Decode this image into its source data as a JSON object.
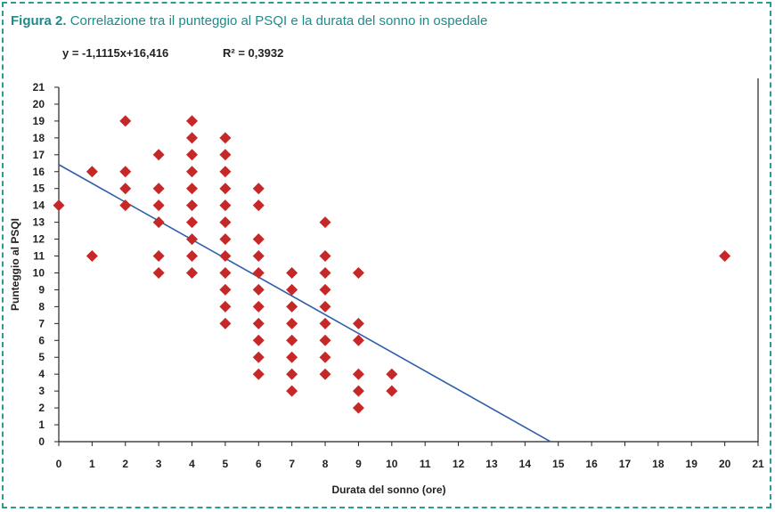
{
  "figure": {
    "label": "Figura 2.",
    "caption": "Correlazione tra il punteggio al PSQI e la durata del sonno in ospedale",
    "equation": "y = -1,1115x+16,416",
    "r_squared": "R² = 0,3932"
  },
  "colors": {
    "frame": "#2a9d8f",
    "title": "#1f8a8a",
    "points": "#c62828",
    "trendline": "#2f5faa",
    "axis": "#222222"
  },
  "chart_data": {
    "type": "scatter",
    "xlabel": "Durata del sonno (ore)",
    "ylabel": "Punteggio al PSQI",
    "xlim": [
      0,
      21
    ],
    "ylim": [
      0,
      21
    ],
    "x_ticks": [
      0,
      1,
      2,
      3,
      4,
      5,
      6,
      7,
      8,
      9,
      10,
      11,
      12,
      13,
      14,
      15,
      16,
      17,
      18,
      19,
      20,
      21
    ],
    "y_ticks": [
      0,
      1,
      2,
      3,
      4,
      5,
      6,
      7,
      8,
      9,
      10,
      11,
      12,
      13,
      14,
      15,
      16,
      17,
      18,
      19,
      20,
      21
    ],
    "grid": false,
    "trendline": {
      "slope": -1.1115,
      "intercept": 16.416,
      "x_range": [
        0,
        14.77
      ]
    },
    "points": [
      [
        0,
        14
      ],
      [
        1,
        16
      ],
      [
        1,
        11
      ],
      [
        2,
        19
      ],
      [
        2,
        16
      ],
      [
        2,
        15
      ],
      [
        2,
        14
      ],
      [
        3,
        17
      ],
      [
        3,
        15
      ],
      [
        3,
        14
      ],
      [
        3,
        13
      ],
      [
        3,
        11
      ],
      [
        3,
        10
      ],
      [
        4,
        19
      ],
      [
        4,
        18
      ],
      [
        4,
        17
      ],
      [
        4,
        16
      ],
      [
        4,
        15
      ],
      [
        4,
        14
      ],
      [
        4,
        13
      ],
      [
        4,
        12
      ],
      [
        4,
        11
      ],
      [
        4,
        10
      ],
      [
        5,
        18
      ],
      [
        5,
        17
      ],
      [
        5,
        16
      ],
      [
        5,
        15
      ],
      [
        5,
        14
      ],
      [
        5,
        13
      ],
      [
        5,
        12
      ],
      [
        5,
        11
      ],
      [
        5,
        10
      ],
      [
        5,
        9
      ],
      [
        5,
        8
      ],
      [
        5,
        7
      ],
      [
        6,
        15
      ],
      [
        6,
        14
      ],
      [
        6,
        12
      ],
      [
        6,
        11
      ],
      [
        6,
        10
      ],
      [
        6,
        9
      ],
      [
        6,
        8
      ],
      [
        6,
        7
      ],
      [
        6,
        6
      ],
      [
        6,
        5
      ],
      [
        6,
        4
      ],
      [
        7,
        10
      ],
      [
        7,
        9
      ],
      [
        7,
        8
      ],
      [
        7,
        7
      ],
      [
        7,
        6
      ],
      [
        7,
        5
      ],
      [
        7,
        4
      ],
      [
        7,
        3
      ],
      [
        8,
        13
      ],
      [
        8,
        11
      ],
      [
        8,
        10
      ],
      [
        8,
        9
      ],
      [
        8,
        8
      ],
      [
        8,
        7
      ],
      [
        8,
        6
      ],
      [
        8,
        5
      ],
      [
        8,
        4
      ],
      [
        9,
        10
      ],
      [
        9,
        7
      ],
      [
        9,
        6
      ],
      [
        9,
        4
      ],
      [
        9,
        3
      ],
      [
        9,
        2
      ],
      [
        10,
        4
      ],
      [
        10,
        3
      ],
      [
        20,
        11
      ]
    ]
  }
}
